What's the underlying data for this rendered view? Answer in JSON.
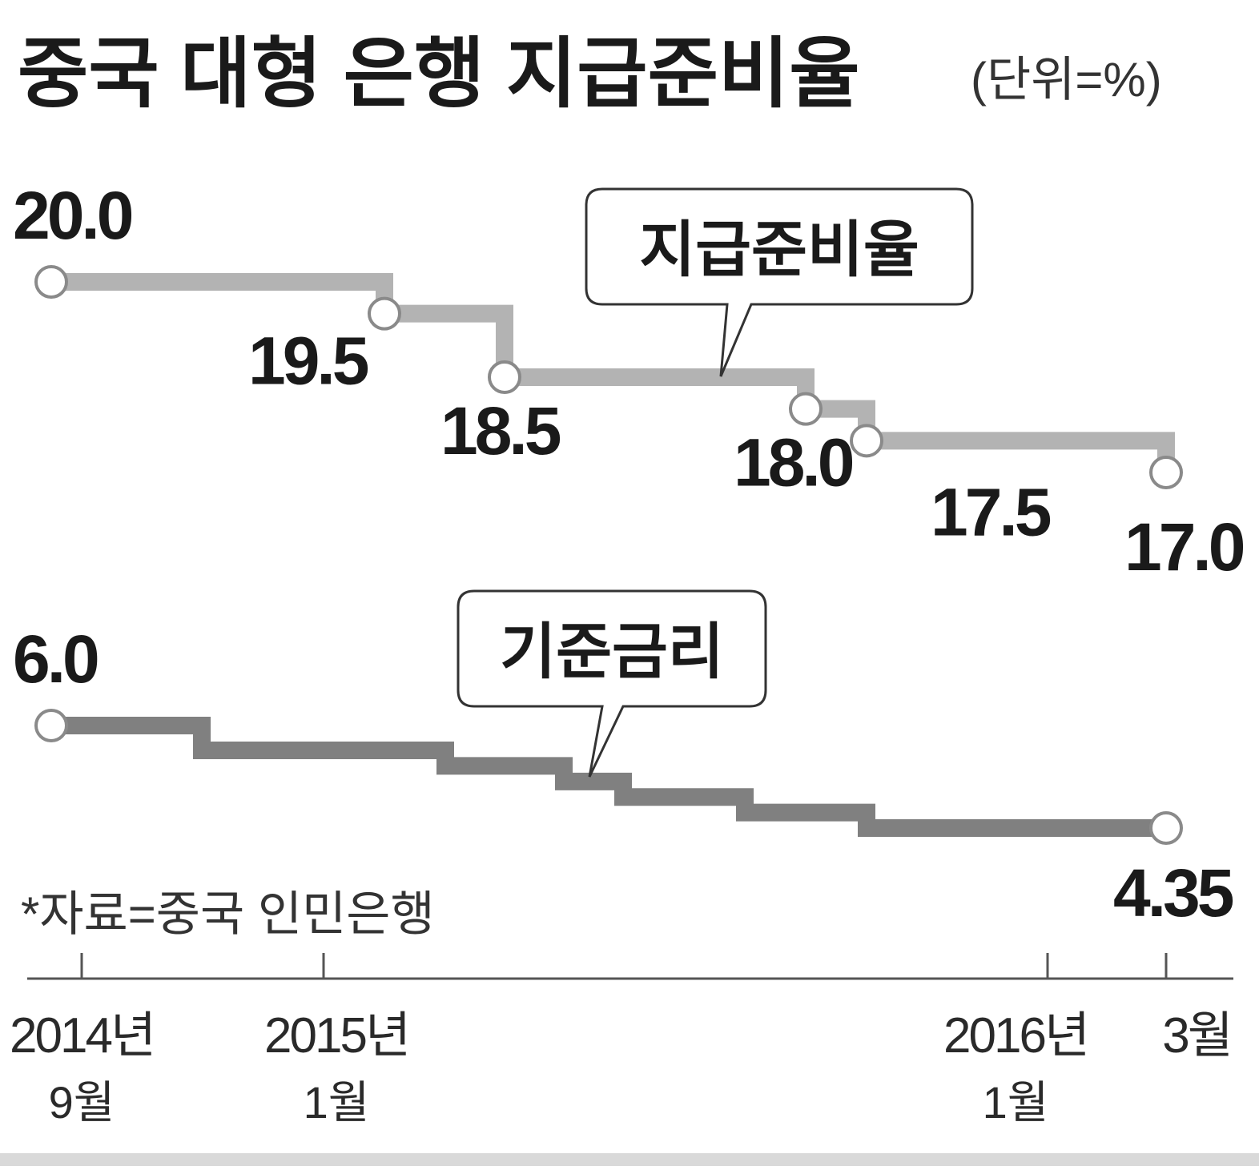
{
  "chart_data": {
    "type": "line",
    "title": "중국 대형 은행 지급준비율",
    "unit_label": "(단위=%)",
    "source": "*자료=중국 인민은행",
    "x_ticks": [
      {
        "year": "2014년",
        "month": "9월",
        "date": "2014-09"
      },
      {
        "year": "2015년",
        "month": "1월",
        "date": "2015-01"
      },
      {
        "year": "2016년",
        "month": "1월",
        "date": "2016-01"
      },
      {
        "year": "",
        "month": "3월",
        "date": "2016-03"
      }
    ],
    "series": [
      {
        "name": "지급준비율",
        "color": "#b3b3b3",
        "x": [
          "2014-09",
          "2015-02",
          "2015-04",
          "2015-09",
          "2015-10",
          "2016-03"
        ],
        "values": [
          20.0,
          19.5,
          18.5,
          18.0,
          17.5,
          17.0
        ],
        "labels": [
          "20.0",
          "19.5",
          "18.5",
          "18.0",
          "17.5",
          "17.0"
        ]
      },
      {
        "name": "기준금리",
        "color": "#808080",
        "x": [
          "2014-09",
          "2014-11",
          "2015-03",
          "2015-05",
          "2015-06",
          "2015-08",
          "2015-10",
          "2016-03"
        ],
        "values": [
          6.0,
          5.6,
          5.35,
          5.1,
          4.85,
          4.6,
          4.35,
          4.35
        ],
        "labels": [
          "6.0",
          "",
          "",
          "",
          "",
          "",
          "",
          "4.35"
        ]
      }
    ],
    "legend": "callout"
  }
}
